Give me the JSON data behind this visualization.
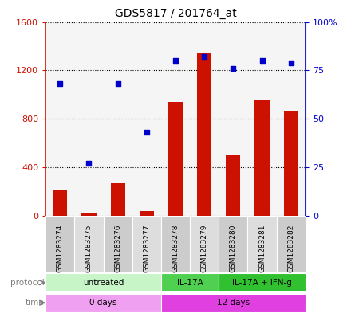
{
  "title": "GDS5817 / 201764_at",
  "samples": [
    "GSM1283274",
    "GSM1283275",
    "GSM1283276",
    "GSM1283277",
    "GSM1283278",
    "GSM1283279",
    "GSM1283280",
    "GSM1283281",
    "GSM1283282"
  ],
  "counts": [
    220,
    30,
    270,
    40,
    940,
    1340,
    510,
    950,
    870
  ],
  "percentiles": [
    68,
    27,
    68,
    43,
    80,
    82,
    76,
    80,
    79
  ],
  "ylim_left": [
    0,
    1600
  ],
  "ylim_right": [
    0,
    100
  ],
  "yticks_left": [
    0,
    400,
    800,
    1200,
    1600
  ],
  "ytick_labels_left": [
    "0",
    "400",
    "800",
    "1200",
    "1600"
  ],
  "yticks_right": [
    0,
    25,
    50,
    75,
    100
  ],
  "ytick_labels_right": [
    "0",
    "25",
    "50",
    "75",
    "100%"
  ],
  "protocol_groups": [
    {
      "label": "untreated",
      "start": 0,
      "end": 4,
      "color": "#c8f5c8"
    },
    {
      "label": "IL-17A",
      "start": 4,
      "end": 6,
      "color": "#50d050"
    },
    {
      "label": "IL-17A + IFN-g",
      "start": 6,
      "end": 9,
      "color": "#30c030"
    }
  ],
  "time_groups": [
    {
      "label": "0 days",
      "start": 0,
      "end": 4,
      "color": "#f0a0f0"
    },
    {
      "label": "12 days",
      "start": 4,
      "end": 9,
      "color": "#e040e0"
    }
  ],
  "bar_color": "#cc1100",
  "dot_color": "#0000cc",
  "bar_width": 0.5,
  "grid_color": "#000000",
  "plot_bg_color": "#f5f5f5",
  "label_bg_color": "#d0d0d0",
  "legend_count_color": "#cc1100",
  "legend_dot_color": "#0000cc",
  "protocol_label_color": "#808080",
  "time_label_color": "#808080"
}
